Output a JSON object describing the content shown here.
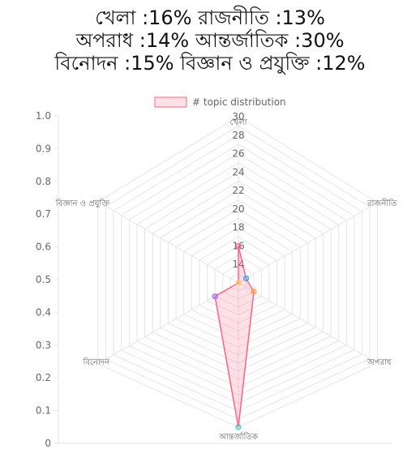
{
  "title_lines": [
    "খেলা :16% রাজনীতি :13%",
    "অপরাধ :14% আন্তর্জাতিক :30%",
    "বিনোদন :15% বিজ্ঞান ও প্রযুক্তি :12%"
  ],
  "chart_data": {
    "type": "radar",
    "categories": [
      "খেলা",
      "রাজনীতি",
      "অপরাধ",
      "আন্তর্জাতিক",
      "বিনোদন",
      "বিজ্ঞান ও প্রযুক্তি"
    ],
    "series": [
      {
        "name": "# topic distribution",
        "values": [
          16,
          13,
          14,
          30,
          15,
          12
        ]
      }
    ],
    "r_ticks": [
      "14",
      "16",
      "18",
      "20",
      "22",
      "24",
      "26",
      "28",
      "30"
    ],
    "r_range": [
      12,
      30
    ],
    "y_ticks": [
      "0",
      "0.1",
      "0.2",
      "0.3",
      "0.4",
      "0.5",
      "0.6",
      "0.7",
      "0.8",
      "0.9",
      "1.0"
    ],
    "y_range": [
      0,
      1
    ],
    "legend_position": "top",
    "grid": true,
    "colors": {
      "line": "#ff6384",
      "fill": "rgba(255,99,132,0.2)",
      "points": [
        "#ff6384",
        "#36a2eb",
        "#ff9f40",
        "#4bc0c0",
        "#9966ff",
        "#ffcd56"
      ],
      "grid": "#e6e6e6",
      "axis_text": "#666666"
    }
  }
}
